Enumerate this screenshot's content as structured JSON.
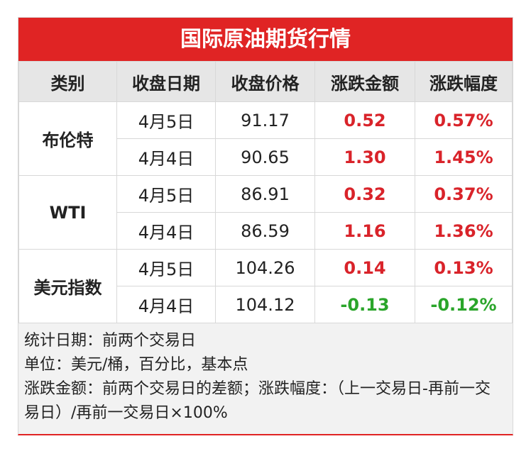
{
  "header": {
    "title": "国际原油期货行情"
  },
  "table": {
    "columns": [
      "类别",
      "收盘日期",
      "收盘价格",
      "涨跌金额",
      "涨跌幅度"
    ],
    "groups": [
      {
        "name": "布伦特",
        "rows": [
          [
            "4月5日",
            "91.17",
            "0.52",
            "0.57%"
          ],
          [
            "4月4日",
            "90.65",
            "1.30",
            "1.45%"
          ]
        ]
      },
      {
        "name": "WTI",
        "rows": [
          [
            "4月5日",
            "86.91",
            "0.32",
            "0.37%"
          ],
          [
            "4月4日",
            "86.59",
            "1.16",
            "1.36%"
          ]
        ]
      },
      {
        "name": "美元指数",
        "rows": [
          [
            "4月5日",
            "104.26",
            "0.14",
            "0.13%"
          ],
          [
            "4月4日",
            "104.12",
            "-0.13",
            "-0.12%"
          ]
        ]
      }
    ]
  },
  "notes": [
    "统计日期：前两个交易日",
    "单位：美元/桶，百分比，基本点",
    "涨跌金额：前两个交易日的差额；涨跌幅度：（上一交易日-再前一交易日）/再前一交易日×100%"
  ]
}
